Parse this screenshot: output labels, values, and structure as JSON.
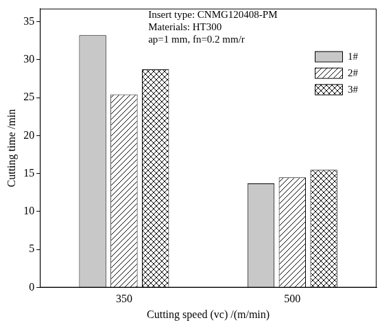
{
  "chart_data": {
    "type": "bar",
    "annotations": [
      "Insert type: CNMG120408-PM",
      "Materials: HT300",
      "ap=1 mm, fn=0.2 mm/r"
    ],
    "x_label": "Cutting speed (vc) /(m/min)",
    "y_label": "Cutting time /min",
    "categories": [
      "350",
      "500"
    ],
    "series": [
      {
        "name": "1#",
        "color": "#c8c8c8",
        "marker": "solid",
        "values": [
          33.2,
          13.7
        ]
      },
      {
        "name": "2#",
        "color": "#000000",
        "marker": "diagonal",
        "values": [
          25.4,
          14.5
        ]
      },
      {
        "name": "3#",
        "color": "#000000",
        "marker": "crosshatch",
        "values": [
          28.7,
          15.5
        ]
      }
    ],
    "ylim": [
      0,
      36.7
    ],
    "yticks": [
      0,
      5,
      10,
      15,
      20,
      25,
      30,
      35
    ],
    "grid": false,
    "legend": "upper right"
  }
}
